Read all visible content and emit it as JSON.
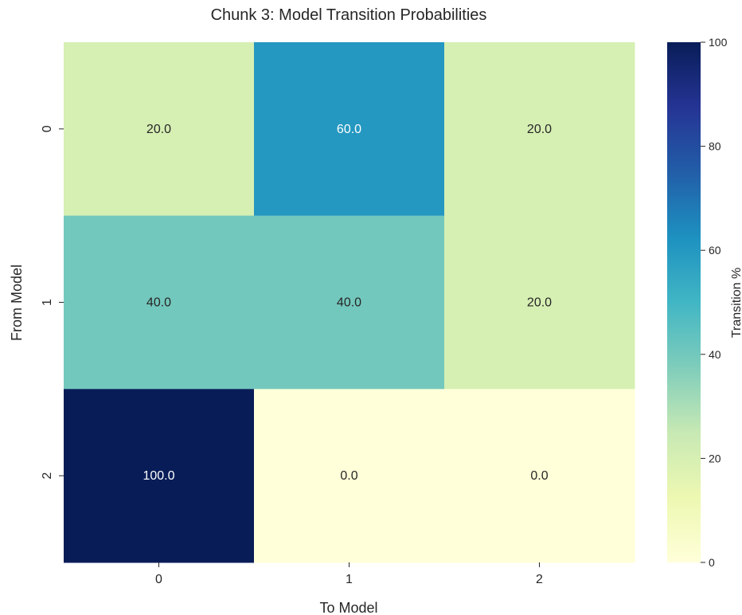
{
  "chart_data": {
    "type": "heatmap",
    "title": "Chunk 3: Model Transition Probabilities",
    "xlabel": "To Model",
    "ylabel": "From Model",
    "x_categories": [
      "0",
      "1",
      "2"
    ],
    "y_categories": [
      "0",
      "1",
      "2"
    ],
    "values": [
      [
        20.0,
        60.0,
        20.0
      ],
      [
        40.0,
        40.0,
        20.0
      ],
      [
        100.0,
        0.0,
        0.0
      ]
    ],
    "value_labels": [
      [
        "20.0",
        "60.0",
        "20.0"
      ],
      [
        "40.0",
        "40.0",
        "20.0"
      ],
      [
        "100.0",
        "0.0",
        "0.0"
      ]
    ],
    "colorbar": {
      "label": "Transition %",
      "range": [
        0,
        100
      ],
      "ticks": [
        "0",
        "20",
        "40",
        "60",
        "80",
        "100"
      ]
    },
    "colormap": "YlGnBu",
    "grid": false
  }
}
